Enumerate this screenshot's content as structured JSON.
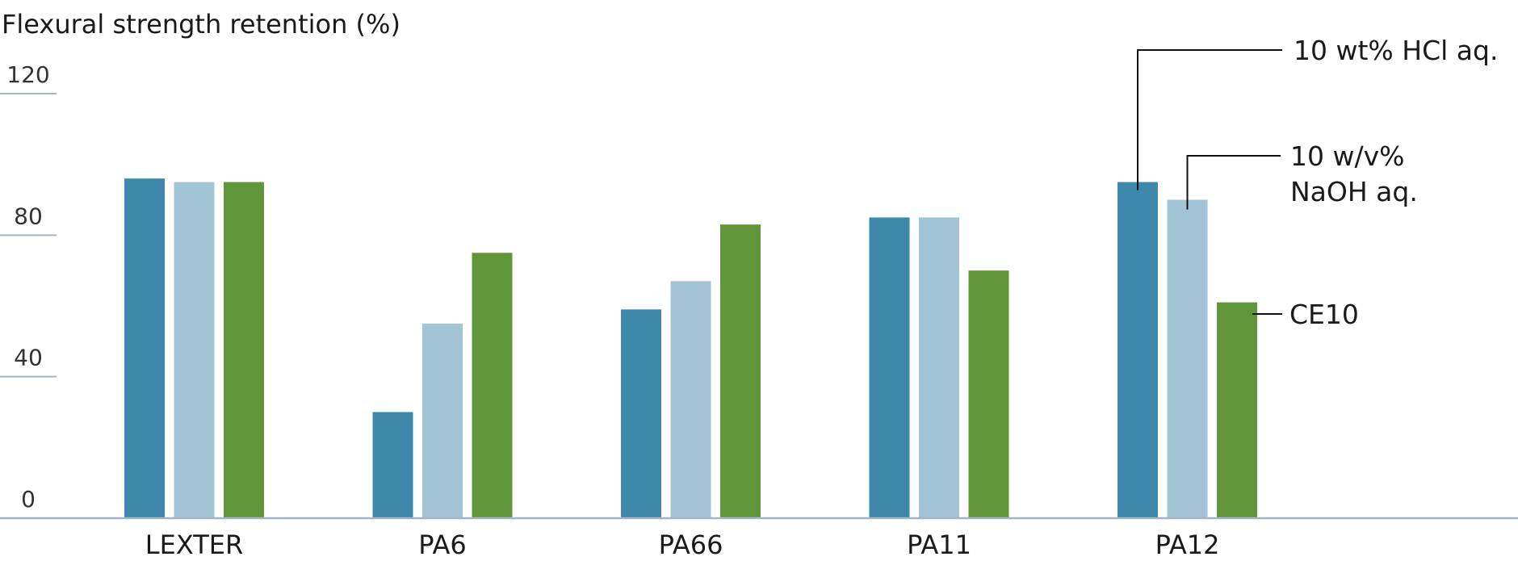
{
  "chart_data": {
    "type": "bar",
    "title": "",
    "ylabel": "Flexural strength retention (%)",
    "xlabel": "",
    "ylim": [
      0,
      120
    ],
    "yticks": [
      0,
      40,
      80,
      120
    ],
    "grid": false,
    "legend_placement": "right, callout lines",
    "categories": [
      "LEXTER",
      "PA6",
      "PA66",
      "PA11",
      "PA12"
    ],
    "series": [
      {
        "name": "10 wt% HCl aq.",
        "color": "#3d88ab",
        "values": [
          96,
          30,
          59,
          85,
          95
        ]
      },
      {
        "name": "10 w/v% NaOH aq.",
        "name_lines": [
          "10 w/v%",
          "NaOH aq."
        ],
        "color": "#a2c4d5",
        "values": [
          95,
          55,
          67,
          85,
          90
        ]
      },
      {
        "name": "CE10",
        "color": "#609639",
        "values": [
          95,
          75,
          83,
          70,
          61
        ]
      }
    ],
    "axis_color": "#a6b4c2"
  }
}
